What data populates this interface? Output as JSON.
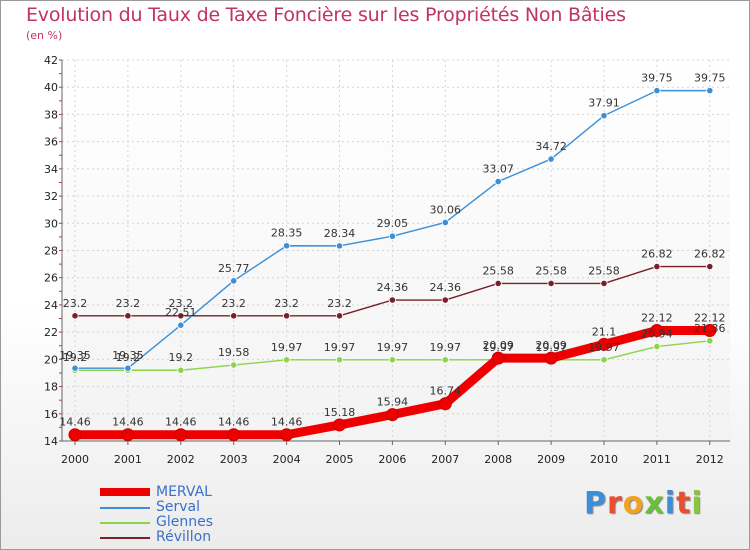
{
  "header": {
    "title": "Evolution du Taux de Taxe Foncière sur les Propriétés Non Bâties",
    "unit": "(en %)"
  },
  "logo": {
    "text": "Proxiti",
    "colors": [
      "#3b8fd9",
      "#e94f2e",
      "#f2a21b",
      "#6bbf3a",
      "#3b8fd9",
      "#e94f2e",
      "#8bc53f"
    ]
  },
  "chart_data": {
    "type": "line",
    "title": "Evolution du Taux de Taxe Foncière sur les Propriétés Non Bâties",
    "ylabel": "(en %)",
    "xlabel": "",
    "x": [
      "2000",
      "2001",
      "2002",
      "2003",
      "2004",
      "2005",
      "2006",
      "2007",
      "2008",
      "2009",
      "2010",
      "2011",
      "2012"
    ],
    "ylim": [
      14,
      42
    ],
    "yticks": [
      14,
      16,
      18,
      20,
      22,
      24,
      26,
      28,
      30,
      32,
      34,
      36,
      38,
      40,
      42
    ],
    "grid": true,
    "legend_position": "bottom-left",
    "series": [
      {
        "name": "MERVAL",
        "color": "#ee0000",
        "values": [
          14.46,
          14.46,
          14.46,
          14.46,
          14.46,
          15.18,
          15.94,
          16.74,
          20.09,
          20.09,
          21.1,
          22.12,
          22.12
        ],
        "labels": [
          "14.46",
          "14.46",
          "14.46",
          "14.46",
          "14.46",
          "15.18",
          "15.94",
          "16.74",
          "20.09",
          "20.09",
          "21.1",
          "22.12",
          "22.12"
        ]
      },
      {
        "name": "Serval",
        "color": "#3b8fd9",
        "values": [
          19.35,
          19.35,
          22.51,
          25.77,
          28.35,
          28.34,
          29.05,
          30.06,
          33.07,
          34.72,
          37.91,
          39.75,
          39.75
        ],
        "labels": [
          "19.35",
          "19.35",
          "22.51",
          "25.77",
          "28.35",
          "28.34",
          "29.05",
          "30.06",
          "33.07",
          "34.72",
          "37.91",
          "39.75",
          "39.75"
        ]
      },
      {
        "name": "Glennes",
        "color": "#8cd44a",
        "values": [
          19.2,
          19.2,
          19.2,
          19.58,
          19.97,
          19.97,
          19.97,
          19.97,
          19.97,
          19.97,
          19.97,
          20.94,
          21.36
        ],
        "labels": [
          "19.2",
          "19.2",
          "19.2",
          "19.58",
          "19.97",
          "19.97",
          "19.97",
          "19.97",
          "19.97",
          "19.97",
          "19.97",
          "20.94",
          "21.36"
        ]
      },
      {
        "name": "Révillon",
        "color": "#7a1f2b",
        "values": [
          23.2,
          23.2,
          23.2,
          23.2,
          23.2,
          23.2,
          24.36,
          24.36,
          25.58,
          25.58,
          25.58,
          26.82,
          26.82
        ],
        "labels": [
          "23.2",
          "23.2",
          "23.2",
          "23.2",
          "23.2",
          "23.2",
          "24.36",
          "24.36",
          "25.58",
          "25.58",
          "25.58",
          "26.82",
          "26.82"
        ]
      }
    ]
  }
}
